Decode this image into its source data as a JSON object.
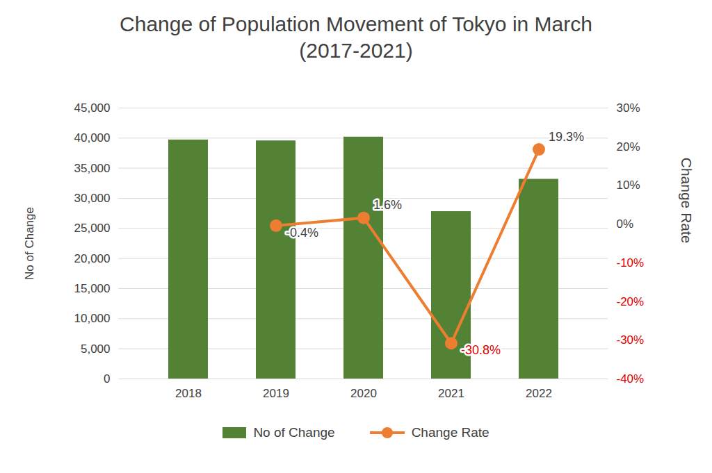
{
  "chart_data": {
    "type": "bar",
    "title": "Change of Population Movement of Tokyo in March (2017-2021)",
    "categories": [
      "2018",
      "2019",
      "2020",
      "2021",
      "2022"
    ],
    "y_label": "No of Change",
    "y2_label": "Change Rate",
    "series": [
      {
        "name": "No of Change",
        "type": "bar",
        "color": "#548235",
        "values": [
          39700,
          39550,
          40180,
          27800,
          33170
        ]
      },
      {
        "name": "Change Rate",
        "type": "line",
        "axis": "y2",
        "color": "#ed7d31",
        "marker": "circle",
        "values": [
          null,
          -0.4,
          1.6,
          -30.8,
          19.3
        ],
        "value_labels": [
          null,
          "-0.4%",
          "1.6%",
          "-30.8%",
          "19.3%"
        ]
      }
    ],
    "ylim": [
      0,
      45000
    ],
    "yticks": [
      0,
      {
        "value": 5000,
        "label": "5,000"
      },
      {
        "value": 10000,
        "label": "10,000"
      },
      {
        "value": 15000,
        "label": "15,000"
      },
      {
        "value": 20000,
        "label": "20,000"
      },
      {
        "value": 25000,
        "label": "25,000"
      },
      {
        "value": 30000,
        "label": "30,000"
      },
      {
        "value": 35000,
        "label": "35,000"
      },
      {
        "value": 40000,
        "label": "40,000"
      },
      {
        "value": 45000,
        "label": "45,000"
      }
    ],
    "y2lim": [
      -40,
      30
    ],
    "y2ticks": [
      {
        "value": -40,
        "label": "-40%"
      },
      {
        "value": -30,
        "label": "-30%"
      },
      {
        "value": -20,
        "label": "-20%"
      },
      {
        "value": -10,
        "label": "-10%"
      },
      {
        "value": 0,
        "label": "0%"
      },
      {
        "value": 10,
        "label": "10%"
      },
      {
        "value": 20,
        "label": "20%"
      },
      {
        "value": 30,
        "label": "30%"
      }
    ],
    "grid": true,
    "data_labels": true,
    "legend": "bottom"
  }
}
